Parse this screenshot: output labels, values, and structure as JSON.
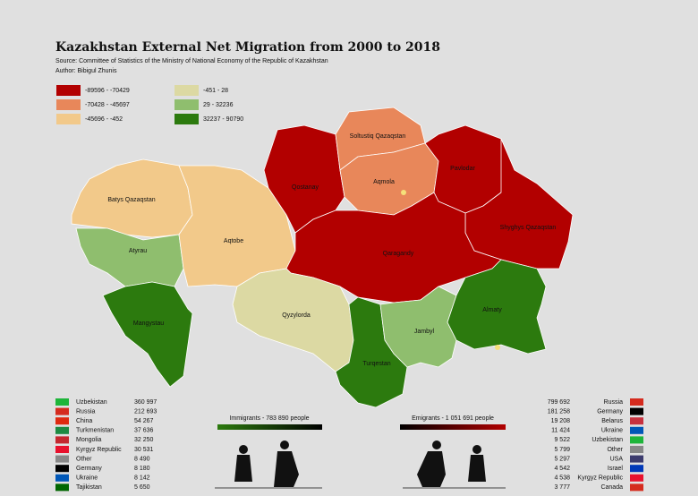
{
  "header": {
    "title": "Kazakhstan External Net Migration from 2000 to 2018",
    "source": "Source: Committee of Statistics of the Ministry of National Economy of the Republic of Kazakhstan",
    "author": "Author: Bibigul Zhunis"
  },
  "legend": [
    {
      "label": "-89596 - -70429",
      "color": "#b20000"
    },
    {
      "label": "-70428 - -45697",
      "color": "#e8875a"
    },
    {
      "label": "-45696 - -452",
      "color": "#f2c98a"
    },
    {
      "label": "-451 - 28",
      "color": "#dcd9a3"
    },
    {
      "label": "29 - 32236",
      "color": "#8fbe6e"
    },
    {
      "label": "32237 - 90790",
      "color": "#2c7a0e"
    }
  ],
  "regions": [
    {
      "name": "Batys Qazaqstan",
      "color": "#f2c98a"
    },
    {
      "name": "Atyrau",
      "color": "#8fbe6e"
    },
    {
      "name": "Aqtobe",
      "color": "#f2c98a"
    },
    {
      "name": "Mangystau",
      "color": "#2c7a0e"
    },
    {
      "name": "Qostanay",
      "color": "#b20000"
    },
    {
      "name": "Soltustiq Qazaqstan",
      "color": "#e8875a"
    },
    {
      "name": "Aqmola",
      "color": "#e8875a"
    },
    {
      "name": "Pavlodar",
      "color": "#b20000"
    },
    {
      "name": "Shyghys Qazaqstan",
      "color": "#b20000"
    },
    {
      "name": "Qaragandy",
      "color": "#b20000"
    },
    {
      "name": "Qyzylorda",
      "color": "#dcd9a3"
    },
    {
      "name": "Turqestan",
      "color": "#2c7a0e"
    },
    {
      "name": "Jambyl",
      "color": "#8fbe6e"
    },
    {
      "name": "Almaty",
      "color": "#2c7a0e"
    }
  ],
  "immigrants": {
    "label": "Immigrants - 783 890 people",
    "rows": [
      {
        "country": "Uzbekistan",
        "value": "360 997"
      },
      {
        "country": "Russia",
        "value": "212 693"
      },
      {
        "country": "China",
        "value": "54 267"
      },
      {
        "country": "Turkmenistan",
        "value": "37 636"
      },
      {
        "country": "Mongolia",
        "value": "32 250"
      },
      {
        "country": "Kyrgyz Republic",
        "value": "30 531"
      },
      {
        "country": "Other",
        "value": "8 490"
      },
      {
        "country": "Germany",
        "value": "8 180"
      },
      {
        "country": "Ukraine",
        "value": "8 142"
      },
      {
        "country": "Tajikistan",
        "value": "5 650"
      }
    ]
  },
  "emigrants": {
    "label": "Emigrants - 1 051 691 people",
    "rows": [
      {
        "country": "Russia",
        "value": "799 692"
      },
      {
        "country": "Germany",
        "value": "181 258"
      },
      {
        "country": "Belarus",
        "value": "19 208"
      },
      {
        "country": "Ukraine",
        "value": "11 424"
      },
      {
        "country": "Uzbekistan",
        "value": "9 522"
      },
      {
        "country": "Other",
        "value": "5 799"
      },
      {
        "country": "USA",
        "value": "5 297"
      },
      {
        "country": "Israel",
        "value": "4 542"
      },
      {
        "country": "Kyrgyz Republic",
        "value": "4 538"
      },
      {
        "country": "Canada",
        "value": "3 777"
      }
    ]
  }
}
